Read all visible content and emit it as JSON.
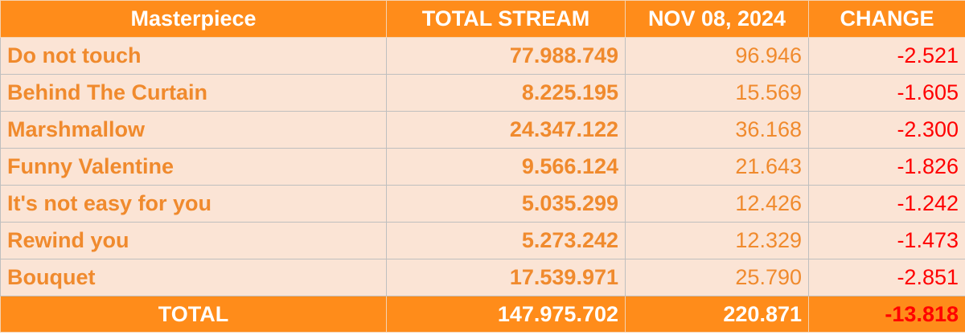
{
  "table": {
    "headers": [
      "Masterpiece",
      "TOTAL STREAM",
      "NOV 08, 2024",
      "CHANGE"
    ],
    "rows": [
      {
        "name": "Do not touch",
        "total": "77.988.749",
        "daily": "96.946",
        "change": "-2.521"
      },
      {
        "name": "Behind The Curtain",
        "total": "8.225.195",
        "daily": "15.569",
        "change": "-1.605"
      },
      {
        "name": "Marshmallow",
        "total": "24.347.122",
        "daily": "36.168",
        "change": "-2.300"
      },
      {
        "name": "Funny Valentine",
        "total": "9.566.124",
        "daily": "21.643",
        "change": "-1.826"
      },
      {
        "name": "It's not easy for you",
        "total": "5.035.299",
        "daily": "12.426",
        "change": "-1.242"
      },
      {
        "name": "Rewind you",
        "total": "5.273.242",
        "daily": "12.329",
        "change": "-1.473"
      },
      {
        "name": "Bouquet",
        "total": "17.539.971",
        "daily": "25.790",
        "change": "-2.851"
      }
    ],
    "footer": {
      "label": "TOTAL",
      "total": "147.975.702",
      "daily": "220.871",
      "change": "-13.818"
    }
  },
  "colors": {
    "header_bg": "#ff8c1a",
    "row_bg": "#fbe4d5",
    "accent_text": "#f08a2d",
    "negative_text": "#ff0000"
  }
}
